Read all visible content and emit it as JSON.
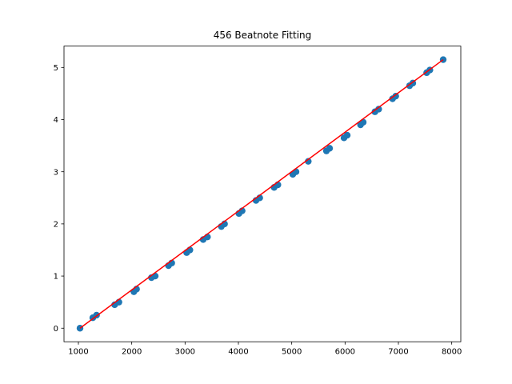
{
  "chart_data": {
    "type": "scatter",
    "title": "456 Beatnote Fitting",
    "xlabel": "",
    "ylabel": "",
    "xlim": [
      730,
      8170
    ],
    "ylim": [
      -0.26,
      5.41
    ],
    "xticks": [
      1000,
      2000,
      3000,
      4000,
      5000,
      6000,
      7000,
      8000
    ],
    "xtick_labels": [
      "1000",
      "2000",
      "3000",
      "4000",
      "5000",
      "6000",
      "7000",
      "8000"
    ],
    "yticks": [
      0,
      1,
      2,
      3,
      4,
      5
    ],
    "ytick_labels": [
      "0",
      "1",
      "2",
      "3",
      "4",
      "5"
    ],
    "grid": false,
    "series": [
      {
        "kind": "scatter",
        "color": "#1f77b4",
        "points": [
          [
            1030,
            0.0
          ],
          [
            1270,
            0.2
          ],
          [
            1340,
            0.25
          ],
          [
            1680,
            0.45
          ],
          [
            1760,
            0.5
          ],
          [
            2040,
            0.7
          ],
          [
            2090,
            0.75
          ],
          [
            2370,
            0.97
          ],
          [
            2440,
            1.0
          ],
          [
            2690,
            1.2
          ],
          [
            2750,
            1.25
          ],
          [
            3030,
            1.45
          ],
          [
            3090,
            1.5
          ],
          [
            3340,
            1.7
          ],
          [
            3420,
            1.75
          ],
          [
            3680,
            1.95
          ],
          [
            3740,
            2.0
          ],
          [
            4010,
            2.2
          ],
          [
            4070,
            2.25
          ],
          [
            4330,
            2.45
          ],
          [
            4400,
            2.5
          ],
          [
            4670,
            2.7
          ],
          [
            4740,
            2.75
          ],
          [
            5020,
            2.95
          ],
          [
            5080,
            3.0
          ],
          [
            5310,
            3.2
          ],
          [
            5650,
            3.4
          ],
          [
            5710,
            3.45
          ],
          [
            5980,
            3.65
          ],
          [
            6040,
            3.7
          ],
          [
            6290,
            3.9
          ],
          [
            6340,
            3.95
          ],
          [
            6560,
            4.15
          ],
          [
            6630,
            4.2
          ],
          [
            6890,
            4.4
          ],
          [
            6950,
            4.45
          ],
          [
            7210,
            4.65
          ],
          [
            7270,
            4.7
          ],
          [
            7530,
            4.9
          ],
          [
            7590,
            4.95
          ],
          [
            7840,
            5.15
          ]
        ]
      },
      {
        "kind": "line",
        "color": "#ff0000",
        "points": [
          [
            1030,
            0.0
          ],
          [
            7840,
            5.15
          ]
        ]
      }
    ]
  }
}
